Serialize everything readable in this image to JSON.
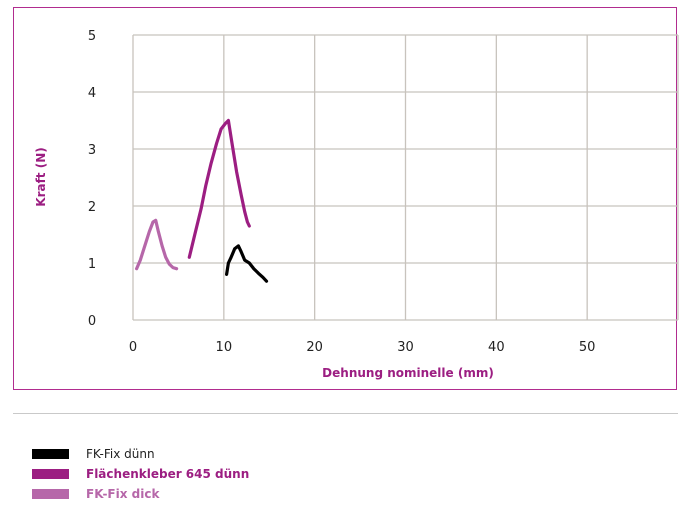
{
  "chart_data": {
    "type": "line",
    "title": "",
    "xlabel": "Dehnung nominelle (mm)",
    "ylabel": "Kraft (N)",
    "xlim": [
      0,
      60
    ],
    "ylim": [
      0,
      5
    ],
    "xticks": [
      0,
      10,
      20,
      30,
      40,
      50
    ],
    "yticks": [
      0,
      1,
      2,
      3,
      4,
      5
    ],
    "grid": true,
    "legend_position": "bottom-left",
    "series": [
      {
        "name": "FK-Fix dünn",
        "color": "#000000",
        "x": [
          10.3,
          10.5,
          10.8,
          11.2,
          11.6,
          11.9,
          12.3,
          12.8,
          13.3,
          13.8,
          14.3,
          14.7
        ],
        "y": [
          0.8,
          1.0,
          1.1,
          1.25,
          1.3,
          1.2,
          1.05,
          1.0,
          0.9,
          0.82,
          0.75,
          0.68
        ]
      },
      {
        "name": "Flächenkleber 645 dünn",
        "color": "#9c1e82",
        "x": [
          6.2,
          6.8,
          7.5,
          8.0,
          8.6,
          9.2,
          9.7,
          10.2,
          10.5,
          10.9,
          11.4,
          11.9,
          12.3,
          12.6,
          12.8
        ],
        "y": [
          1.1,
          1.5,
          1.95,
          2.35,
          2.75,
          3.1,
          3.35,
          3.45,
          3.5,
          3.1,
          2.6,
          2.2,
          1.9,
          1.72,
          1.65
        ]
      },
      {
        "name": "FK-Fix dick",
        "color": "#b667a9",
        "x": [
          0.4,
          0.8,
          1.3,
          1.8,
          2.2,
          2.5,
          2.8,
          3.2,
          3.6,
          4.0,
          4.4,
          4.8
        ],
        "y": [
          0.9,
          1.05,
          1.3,
          1.55,
          1.72,
          1.75,
          1.55,
          1.3,
          1.1,
          0.98,
          0.92,
          0.9
        ]
      }
    ]
  },
  "legend": {
    "items": [
      {
        "label": "FK-Fix dünn",
        "color": "#000000"
      },
      {
        "label": "Flächenkleber 645 dünn",
        "color": "#9c1e82"
      },
      {
        "label": "FK-Fix dick",
        "color": "#b667a9"
      }
    ]
  }
}
